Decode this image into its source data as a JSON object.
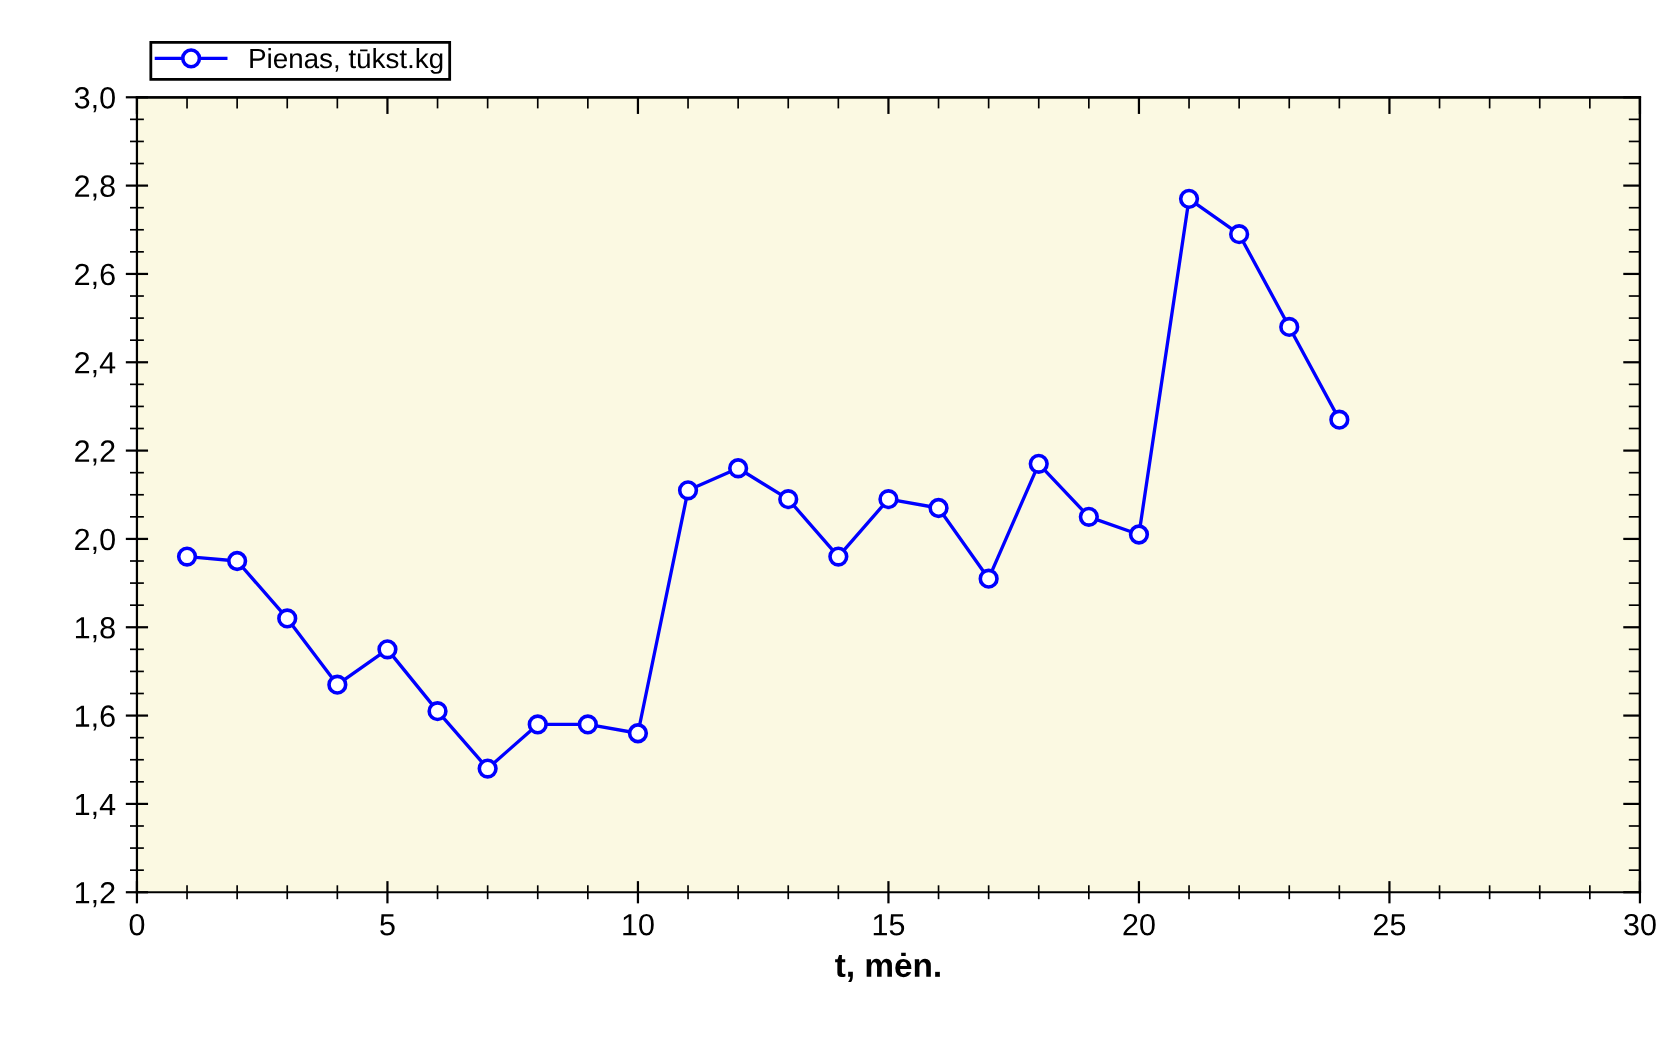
{
  "chart_data": {
    "type": "line",
    "xlabel": "t, mėn.",
    "x": [
      1,
      2,
      3,
      4,
      5,
      6,
      7,
      8,
      9,
      10,
      11,
      12,
      13,
      14,
      15,
      16,
      17,
      18,
      19,
      20,
      21,
      22,
      23,
      24
    ],
    "series": [
      {
        "name": "Pienas, tūkst.kg",
        "color": "#0000ff",
        "values": [
          1.96,
          1.95,
          1.82,
          1.67,
          1.75,
          1.61,
          1.48,
          1.58,
          1.58,
          1.56,
          2.11,
          2.16,
          2.09,
          1.96,
          2.09,
          2.07,
          1.91,
          2.17,
          2.05,
          2.01,
          2.77,
          2.69,
          2.48,
          2.27
        ]
      }
    ],
    "xlim": [
      0,
      30
    ],
    "xticks": [
      0,
      5,
      10,
      15,
      20,
      25,
      30
    ],
    "ylim": [
      1.2,
      3.0
    ],
    "yticks": [
      {
        "value": 1.2,
        "label": "1,2"
      },
      {
        "value": 1.4,
        "label": "1,4"
      },
      {
        "value": 1.6,
        "label": "1,6"
      },
      {
        "value": 1.8,
        "label": "1,8"
      },
      {
        "value": 2.0,
        "label": "2,0"
      },
      {
        "value": 2.2,
        "label": "2,2"
      },
      {
        "value": 2.4,
        "label": "2,4"
      },
      {
        "value": 2.6,
        "label": "2,6"
      },
      {
        "value": 2.8,
        "label": "2,8"
      },
      {
        "value": 3.0,
        "label": "3,0"
      }
    ],
    "grid": false,
    "legend": "top left",
    "marker": "circle",
    "line_style": "solid"
  }
}
